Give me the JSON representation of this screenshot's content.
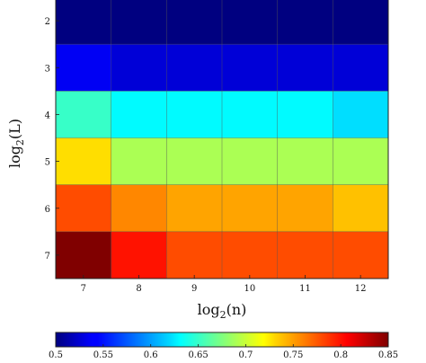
{
  "chart_data": {
    "type": "heatmap",
    "title": "",
    "xlabel": {
      "base": "log",
      "sub": "2",
      "arg": "(n)"
    },
    "ylabel": {
      "base": "log",
      "sub": "2",
      "arg": "(L)"
    },
    "x": [
      "7",
      "8",
      "9",
      "10",
      "11",
      "12"
    ],
    "y": [
      "2",
      "3",
      "4",
      "5",
      "6",
      "7"
    ],
    "values": [
      [
        0.5,
        0.5,
        0.5,
        0.5,
        0.5,
        0.5
      ],
      [
        0.54,
        0.53,
        0.53,
        0.53,
        0.53,
        0.53
      ],
      [
        0.65,
        0.63,
        0.63,
        0.63,
        0.63,
        0.62
      ],
      [
        0.73,
        0.69,
        0.69,
        0.69,
        0.69,
        0.69
      ],
      [
        0.78,
        0.76,
        0.75,
        0.75,
        0.75,
        0.74
      ],
      [
        0.85,
        0.8,
        0.78,
        0.78,
        0.78,
        0.78
      ]
    ],
    "colorbar": {
      "range": [
        0.5,
        0.85
      ],
      "ticks": [
        "0.5",
        "0.55",
        "0.6",
        "0.65",
        "0.7",
        "0.75",
        "0.8",
        "0.85"
      ],
      "colormap": "jet",
      "position": "bottom"
    },
    "grid": true
  }
}
